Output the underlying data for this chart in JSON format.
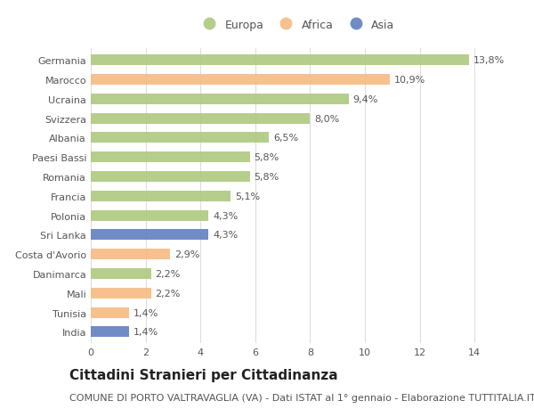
{
  "categories": [
    "India",
    "Tunisia",
    "Mali",
    "Danimarca",
    "Costa d'Avorio",
    "Sri Lanka",
    "Polonia",
    "Francia",
    "Romania",
    "Paesi Bassi",
    "Albania",
    "Svizzera",
    "Ucraina",
    "Marocco",
    "Germania"
  ],
  "values": [
    1.4,
    1.4,
    2.2,
    2.2,
    2.9,
    4.3,
    4.3,
    5.1,
    5.8,
    5.8,
    6.5,
    8.0,
    9.4,
    10.9,
    13.8
  ],
  "continents": [
    "Asia",
    "Africa",
    "Africa",
    "Europa",
    "Africa",
    "Asia",
    "Europa",
    "Europa",
    "Europa",
    "Europa",
    "Europa",
    "Europa",
    "Europa",
    "Africa",
    "Europa"
  ],
  "colors": {
    "Europa": "#adc97e",
    "Africa": "#f5bb82",
    "Asia": "#6080c0"
  },
  "legend_labels": [
    "Europa",
    "Africa",
    "Asia"
  ],
  "legend_colors": [
    "#adc97e",
    "#f5bb82",
    "#6080c0"
  ],
  "title": "Cittadini Stranieri per Cittadinanza",
  "subtitle": "COMUNE DI PORTO VALTRAVAGLIA (VA) - Dati ISTAT al 1° gennaio - Elaborazione TUTTITALIA.IT",
  "xlabel_values": [
    0,
    2,
    4,
    6,
    8,
    10,
    12,
    14
  ],
  "xlim": [
    0,
    15.0
  ],
  "background_color": "#ffffff",
  "grid_color": "#dddddd",
  "title_fontsize": 11,
  "subtitle_fontsize": 8,
  "label_fontsize": 8,
  "tick_fontsize": 8,
  "legend_fontsize": 9,
  "bar_height": 0.55
}
